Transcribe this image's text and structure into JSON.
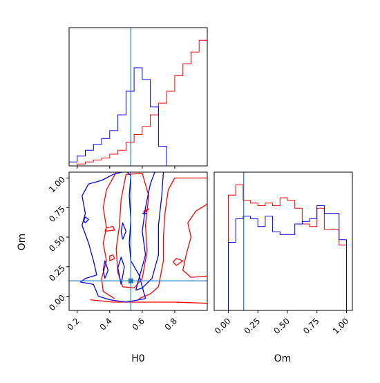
{
  "colors": {
    "series_a": "#ff0000",
    "series_b": "#0000ff",
    "truth": "#1f77b4",
    "axes": "#000000"
  },
  "chart_data": {
    "type": "corner",
    "parameters": [
      "H0",
      "Om"
    ],
    "truth": {
      "H0": 0.53,
      "Om": 0.13
    },
    "axes": {
      "H0": {
        "label": "H0",
        "lim": [
          0.15,
          1.0
        ],
        "ticks": [
          0.2,
          0.4,
          0.6,
          0.8
        ],
        "tick_labels": [
          "0.2",
          "0.4",
          "0.6",
          "0.8"
        ]
      },
      "Om": {
        "label": "Om",
        "lim": [
          -0.12,
          1.05
        ],
        "ticks": [
          0.0,
          0.25,
          0.5,
          0.75,
          1.0
        ],
        "tick_labels": [
          "0.00",
          "0.25",
          "0.50",
          "0.75",
          "1.00"
        ]
      }
    },
    "panels": [
      {
        "kind": "hist",
        "param": "H0",
        "bin_edges": [
          0.15,
          0.2,
          0.25,
          0.3,
          0.35,
          0.4,
          0.45,
          0.5,
          0.55,
          0.6,
          0.65,
          0.7,
          0.75,
          0.8,
          0.85,
          0.9,
          0.95,
          1.0
        ],
        "series": [
          {
            "color": "red",
            "values": [
              0,
              1,
              2,
              3,
              4,
              6,
              8,
              12,
              16,
              20,
              26,
              32,
              38,
              46,
              52,
              58,
              64
            ]
          },
          {
            "color": "blue",
            "values": [
              2,
              5,
              8,
              11,
              14,
              18,
              26,
              38,
              50,
              44,
              30,
              10,
              0,
              0,
              0,
              0,
              0
            ]
          }
        ]
      },
      {
        "kind": "hist",
        "param": "Om",
        "bin_edges": [
          0.0,
          0.0625,
          0.125,
          0.1875,
          0.25,
          0.3125,
          0.375,
          0.4375,
          0.5,
          0.5625,
          0.625,
          0.6875,
          0.75,
          0.8125,
          0.875,
          0.9375,
          1.0
        ],
        "series": [
          {
            "color": "red",
            "values": [
              88,
              96,
              84,
              82,
              80,
              82,
              80,
              86,
              84,
              78,
              66,
              64,
              78,
              62,
              62,
              50
            ]
          },
          {
            "color": "blue",
            "values": [
              52,
              70,
              72,
              70,
              64,
              72,
              60,
              58,
              58,
              66,
              68,
              70,
              80,
              74,
              74,
              54
            ]
          }
        ]
      },
      {
        "kind": "contour",
        "x": "H0",
        "y": "Om",
        "series": [
          {
            "color": "red",
            "contours": [
              [
                [
                  0.28,
                  -0.03
                ],
                [
                  0.42,
                  -0.05
                ],
                [
                  0.6,
                  -0.05
                ],
                [
                  0.8,
                  -0.05
                ],
                [
                  1.0,
                  -0.06
                ]
              ],
              [
                [
                  0.43,
                  -0.02
                ],
                [
                  0.36,
                  0.04
                ],
                [
                  0.35,
                  0.15
                ],
                [
                  0.38,
                  0.3
                ],
                [
                  0.36,
                  0.45
                ],
                [
                  0.38,
                  0.58
                ],
                [
                  0.36,
                  0.75
                ],
                [
                  0.38,
                  0.9
                ],
                [
                  0.44,
                  1.05
                ]
              ],
              [
                [
                  0.58,
                  -0.02
                ],
                [
                  0.65,
                  0.02
                ],
                [
                  0.7,
                  0.08
                ],
                [
                  0.73,
                  0.3
                ],
                [
                  0.73,
                  0.5
                ],
                [
                  0.74,
                  0.7
                ],
                [
                  0.76,
                  0.9
                ],
                [
                  0.8,
                  1.0
                ],
                [
                  1.0,
                  1.0
                ]
              ],
              [
                [
                  1.0,
                  0.17
                ],
                [
                  0.9,
                  0.16
                ],
                [
                  0.85,
                  0.22
                ],
                [
                  0.87,
                  0.35
                ],
                [
                  0.9,
                  0.5
                ],
                [
                  0.88,
                  0.62
                ],
                [
                  0.93,
                  0.72
                ],
                [
                  1.0,
                  0.78
                ]
              ],
              [
                [
                  0.48,
                  0.08
                ],
                [
                  0.45,
                  0.2
                ],
                [
                  0.44,
                  0.4
                ],
                [
                  0.46,
                  0.6
                ],
                [
                  0.47,
                  0.82
                ],
                [
                  0.5,
                  1.03
                ],
                [
                  0.6,
                  1.04
                ],
                [
                  0.64,
                  0.85
                ],
                [
                  0.62,
                  0.6
                ],
                [
                  0.63,
                  0.38
                ],
                [
                  0.6,
                  0.15
                ],
                [
                  0.55,
                  0.07
                ],
                [
                  0.48,
                  0.08
                ]
              ],
              [
                [
                  0.4,
                  0.3
                ],
                [
                  0.43,
                  0.32
                ],
                [
                  0.42,
                  0.35
                ],
                [
                  0.4,
                  0.34
                ],
                [
                  0.4,
                  0.3
                ]
              ],
              [
                [
                  0.37,
                  0.55
                ],
                [
                  0.43,
                  0.56
                ],
                [
                  0.42,
                  0.59
                ],
                [
                  0.38,
                  0.58
                ],
                [
                  0.37,
                  0.55
                ]
              ],
              [
                [
                  0.61,
                  0.7
                ],
                [
                  0.64,
                  0.74
                ],
                [
                  0.61,
                  0.72
                ],
                [
                  0.61,
                  0.7
                ]
              ],
              [
                [
                  0.81,
                  0.26
                ],
                [
                  0.85,
                  0.3
                ],
                [
                  0.81,
                  0.32
                ],
                [
                  0.79,
                  0.29
                ],
                [
                  0.81,
                  0.26
                ]
              ]
            ]
          },
          {
            "color": "blue",
            "contours": [
              [
                [
                  0.33,
                  0.0
                ],
                [
                  0.3,
                  0.1
                ],
                [
                  0.22,
                  0.12
                ],
                [
                  0.25,
                  0.15
                ],
                [
                  0.32,
                  0.18
                ],
                [
                  0.3,
                  0.3
                ],
                [
                  0.27,
                  0.45
                ],
                [
                  0.23,
                  0.6
                ],
                [
                  0.25,
                  0.7
                ],
                [
                  0.23,
                  0.85
                ],
                [
                  0.27,
                  0.95
                ],
                [
                  0.35,
                  0.98
                ],
                [
                  0.42,
                  1.03
                ],
                [
                  0.5,
                  1.06
                ],
                [
                  0.53,
                  1.02
                ],
                [
                  0.52,
                  0.85
                ],
                [
                  0.53,
                  0.65
                ],
                [
                  0.52,
                  0.45
                ],
                [
                  0.53,
                  0.3
                ],
                [
                  0.58,
                  0.18
                ],
                [
                  0.62,
                  -0.02
                ],
                [
                  0.5,
                  -0.05
                ],
                [
                  0.4,
                  -0.03
                ],
                [
                  0.33,
                  0.0
                ]
              ],
              [
                [
                  0.56,
                  0.05
                ],
                [
                  0.59,
                  0.2
                ],
                [
                  0.62,
                  0.35
                ],
                [
                  0.6,
                  0.55
                ],
                [
                  0.62,
                  0.75
                ],
                [
                  0.65,
                  0.95
                ],
                [
                  0.68,
                  1.06
                ],
                [
                  0.73,
                  1.05
                ],
                [
                  0.72,
                  0.85
                ],
                [
                  0.7,
                  0.6
                ],
                [
                  0.7,
                  0.35
                ],
                [
                  0.66,
                  0.15
                ],
                [
                  0.6,
                  0.07
                ],
                [
                  0.56,
                  0.05
                ]
              ],
              [
                [
                  0.37,
                  0.15
                ],
                [
                  0.39,
                  0.22
                ],
                [
                  0.37,
                  0.3
                ],
                [
                  0.36,
                  0.22
                ],
                [
                  0.37,
                  0.15
                ]
              ],
              [
                [
                  0.25,
                  0.62
                ],
                [
                  0.27,
                  0.65
                ],
                [
                  0.25,
                  0.67
                ],
                [
                  0.24,
                  0.64
                ],
                [
                  0.25,
                  0.62
                ]
              ],
              [
                [
                  0.47,
                  0.1
                ],
                [
                  0.49,
                  0.25
                ],
                [
                  0.47,
                  0.33
                ],
                [
                  0.45,
                  0.24
                ],
                [
                  0.47,
                  0.1
                ]
              ],
              [
                [
                  0.48,
                  0.48
                ],
                [
                  0.5,
                  0.55
                ],
                [
                  0.48,
                  0.62
                ],
                [
                  0.47,
                  0.55
                ],
                [
                  0.48,
                  0.48
                ]
              ],
              [
                [
                  0.6,
                  0.7
                ],
                [
                  0.63,
                  0.7
                ]
              ]
            ]
          }
        ]
      }
    ]
  }
}
